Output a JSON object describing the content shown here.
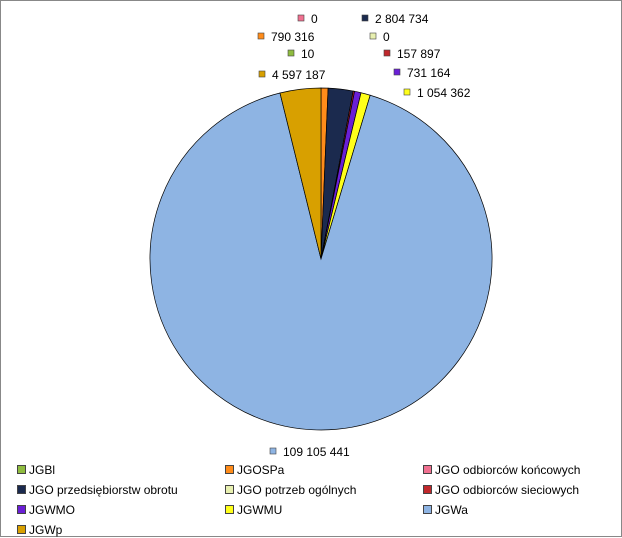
{
  "chart_data": {
    "type": "pie",
    "title": "",
    "start_angle_deg": 0,
    "direction": "clockwise",
    "legend_position": "bottom",
    "slices": [
      {
        "name": "JGBl",
        "value": 10,
        "label": "10",
        "color": "#8fbc3f"
      },
      {
        "name": "JGOSPa",
        "value": 790316,
        "label": "790 316",
        "color": "#ff8c1a"
      },
      {
        "name": "JGO odbiorców końcowych",
        "value": 0,
        "label": "0",
        "color": "#f07090"
      },
      {
        "name": "JGO przedsiębiorstw obrotu",
        "value": 2804734,
        "label": "2 804 734",
        "color": "#1b2a4e"
      },
      {
        "name": "JGO potrzeb ogólnych",
        "value": 0,
        "label": "0",
        "color": "#e8f0b0"
      },
      {
        "name": "JGO odbiorców sieciowych",
        "value": 157897,
        "label": "157 897",
        "color": "#c0282c"
      },
      {
        "name": "JGWMO",
        "value": 731164,
        "label": "731 164",
        "color": "#6a1fd6"
      },
      {
        "name": "JGWMU",
        "value": 1054362,
        "label": "1 054 362",
        "color": "#ffff1a"
      },
      {
        "name": "JGWa",
        "value": 109105441,
        "label": "109 105 441",
        "color": "#8eb4e3"
      },
      {
        "name": "JGWp",
        "value": 4597187,
        "label": "4 597 187",
        "color": "#d8a000"
      }
    ]
  }
}
